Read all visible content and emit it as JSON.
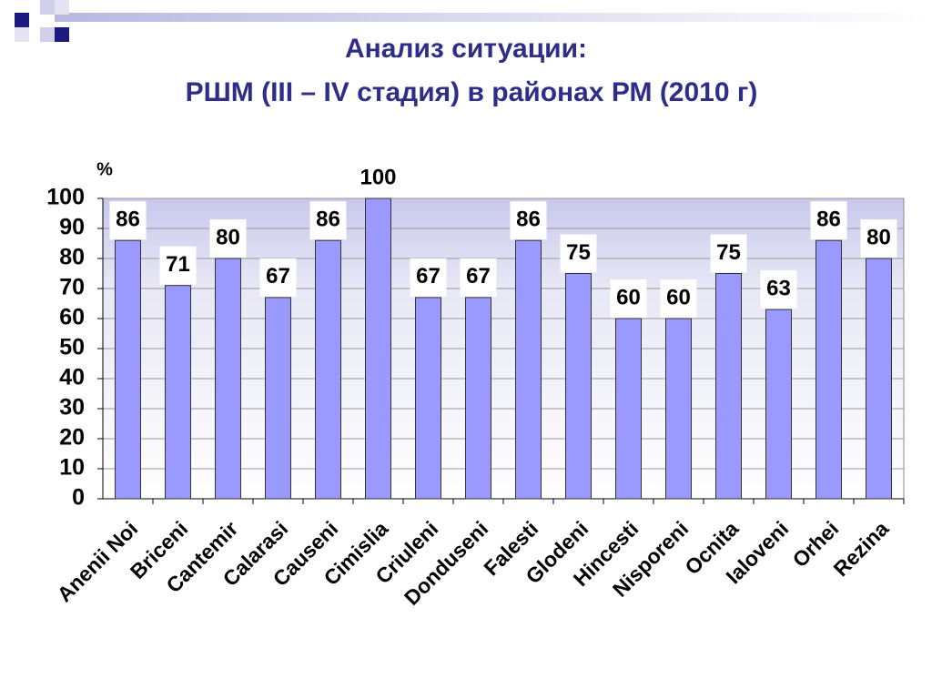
{
  "chart_data": {
    "type": "bar",
    "title": "Анализ ситуации:",
    "subtitle": "РШМ (III – IV стадия) в районах РМ (2010 г)",
    "y_label": "%",
    "categories": [
      "Anenii Noi",
      "Briceni",
      "Cantemir",
      "Calarasi",
      "Causeni",
      "Cimislia",
      "Criuleni",
      "Donduseni",
      "Falesti",
      "Glodeni",
      "Hincesti",
      "Nisporeni",
      "Ocnita",
      "Ialoveni",
      "Orhei",
      "Rezina"
    ],
    "values": [
      86,
      71,
      80,
      67,
      86,
      100,
      67,
      67,
      86,
      75,
      60,
      60,
      75,
      63,
      86,
      80
    ],
    "color": "#9999ff",
    "ylim": [
      0,
      100
    ],
    "yticks": [
      0,
      10,
      20,
      30,
      40,
      50,
      60,
      70,
      80,
      90,
      100
    ],
    "grid": true
  }
}
